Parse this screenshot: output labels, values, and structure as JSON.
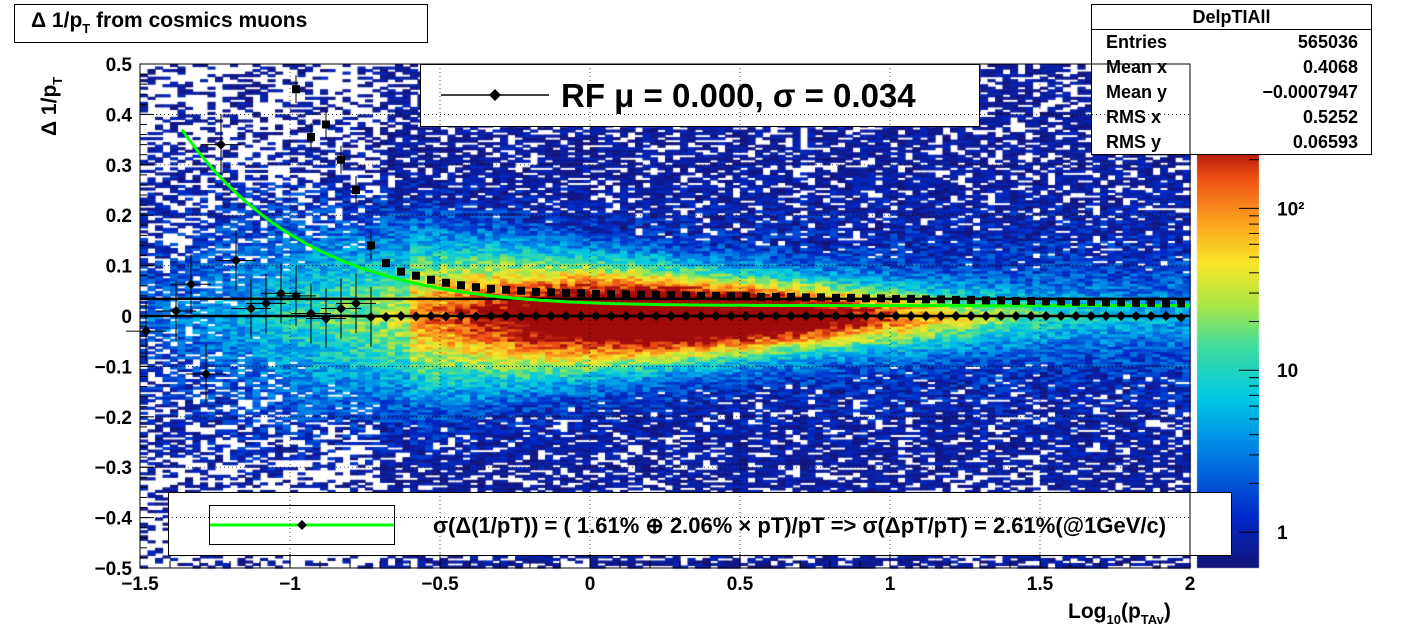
{
  "title": {
    "text": "Δ 1/p",
    "sub": "T",
    "rest": " from cosmics muons"
  },
  "stats": {
    "name": "DelpTIAll",
    "rows": [
      {
        "label": "Entries",
        "value": "565036"
      },
      {
        "label": "Mean x",
        "value": "0.4068"
      },
      {
        "label": "Mean y",
        "value": "−0.0007947"
      },
      {
        "label": "RMS x",
        "value": "0.5252"
      },
      {
        "label": "RMS y",
        "value": "0.06593"
      }
    ]
  },
  "fit_label": "RF μ =  0.000, σ =   0.034",
  "legend_text": "σ(Δ(1/pT)) = ( 1.61% ⊕  2.06% × pT)/pT => σ(ΔpT/pT) =  2.61%(@1GeV/c)",
  "xaxis_title": {
    "main": "Log",
    "sub1": "10",
    "mid": "(p",
    "sub2": "TAv",
    "end": ")"
  },
  "yaxis_title": {
    "main": "Δ 1/p",
    "sub": "T"
  },
  "chart_data": {
    "type": "heatmap",
    "title": "Δ 1/pT from cosmics muons",
    "xlabel": "Log10(pTAv)",
    "ylabel": "Δ 1/pT",
    "xlim": [
      -1.5,
      2
    ],
    "ylim": [
      -0.5,
      0.5
    ],
    "x_ticks": [
      -1.5,
      -1,
      -0.5,
      0,
      0.5,
      1,
      1.5,
      2
    ],
    "x_tick_labels": [
      "−1.5",
      "−1",
      "−0.5",
      "0",
      "0.5",
      "1",
      "1.5",
      "2"
    ],
    "y_ticks": [
      -0.5,
      -0.4,
      -0.3,
      -0.2,
      -0.1,
      0,
      0.1,
      0.2,
      0.3,
      0.4,
      0.5
    ],
    "y_tick_labels": [
      "−0.5",
      "−0.4",
      "−0.3",
      "−0.2",
      "−0.1",
      "0",
      "0.1",
      "0.2",
      "0.3",
      "0.4",
      "0.5"
    ],
    "z_scale": "log",
    "z_ticks": [
      1,
      10,
      100
    ],
    "z_tick_labels": [
      "1",
      "10",
      "10²"
    ],
    "grid": true,
    "reference_lines_y": [
      0.0,
      0.034
    ],
    "mean_points": [
      [
        -1.48,
        -0.03
      ],
      [
        -1.38,
        0.01
      ],
      [
        -1.33,
        0.063
      ],
      [
        -1.28,
        -0.115
      ],
      [
        -1.23,
        0.34
      ],
      [
        -1.18,
        0.11
      ],
      [
        -1.13,
        0.015
      ],
      [
        -1.08,
        0.025
      ],
      [
        -1.03,
        0.045
      ],
      [
        -0.98,
        0.04
      ],
      [
        -0.93,
        0.005
      ],
      [
        -0.88,
        -0.005
      ],
      [
        -0.83,
        0.015
      ],
      [
        -0.78,
        0.025
      ],
      [
        -0.73,
        -0.002
      ],
      [
        -0.68,
        -0.002
      ],
      [
        -0.63,
        0.0
      ],
      [
        -0.58,
        -0.001
      ],
      [
        -0.53,
        0.0
      ],
      [
        -0.48,
        -0.001
      ],
      [
        -0.43,
        0.0
      ],
      [
        -0.38,
        -0.001
      ],
      [
        -0.33,
        0.0
      ],
      [
        -0.28,
        0.0
      ],
      [
        -0.23,
        -0.001
      ],
      [
        -0.18,
        0.0
      ],
      [
        -0.13,
        0.0
      ],
      [
        -0.08,
        0.0
      ],
      [
        -0.03,
        0.0
      ],
      [
        0.02,
        0.0
      ],
      [
        0.07,
        0.0
      ],
      [
        0.12,
        0.0
      ],
      [
        0.17,
        0.0
      ],
      [
        0.22,
        0.0
      ],
      [
        0.27,
        0.0
      ],
      [
        0.32,
        0.0
      ],
      [
        0.37,
        0.0
      ],
      [
        0.42,
        0.0
      ],
      [
        0.47,
        0.0
      ],
      [
        0.52,
        0.0
      ],
      [
        0.57,
        0.0
      ],
      [
        0.62,
        0.0
      ],
      [
        0.67,
        0.0
      ],
      [
        0.72,
        0.0
      ],
      [
        0.77,
        0.0
      ],
      [
        0.82,
        0.0
      ],
      [
        0.87,
        0.0
      ],
      [
        0.92,
        0.0
      ],
      [
        0.97,
        0.0
      ],
      [
        1.02,
        0.0
      ],
      [
        1.07,
        0.0
      ],
      [
        1.12,
        0.0
      ],
      [
        1.17,
        0.0
      ],
      [
        1.22,
        0.0
      ],
      [
        1.27,
        0.0
      ],
      [
        1.32,
        0.0
      ],
      [
        1.37,
        0.0
      ],
      [
        1.42,
        0.0
      ],
      [
        1.47,
        0.0
      ],
      [
        1.52,
        0.0
      ],
      [
        1.57,
        0.0
      ],
      [
        1.62,
        0.0
      ],
      [
        1.67,
        0.0
      ],
      [
        1.72,
        0.0
      ],
      [
        1.77,
        0.0
      ],
      [
        1.82,
        0.0
      ],
      [
        1.87,
        0.0
      ],
      [
        1.92,
        0.0
      ],
      [
        1.97,
        -0.003
      ]
    ],
    "sigma_points": [
      [
        -0.98,
        0.45
      ],
      [
        -0.93,
        0.355
      ],
      [
        -0.88,
        0.38
      ],
      [
        -0.83,
        0.31
      ],
      [
        -0.78,
        0.25
      ],
      [
        -0.73,
        0.14
      ],
      [
        -0.68,
        0.105
      ],
      [
        -0.63,
        0.088
      ],
      [
        -0.58,
        0.08
      ],
      [
        -0.53,
        0.072
      ],
      [
        -0.48,
        0.066
      ],
      [
        -0.43,
        0.061
      ],
      [
        -0.38,
        0.057
      ],
      [
        -0.33,
        0.054
      ],
      [
        -0.28,
        0.052
      ],
      [
        -0.23,
        0.05
      ],
      [
        -0.18,
        0.048
      ],
      [
        -0.13,
        0.047
      ],
      [
        -0.08,
        0.046
      ],
      [
        -0.03,
        0.045
      ],
      [
        0.02,
        0.044
      ],
      [
        0.07,
        0.043
      ],
      [
        0.12,
        0.043
      ],
      [
        0.17,
        0.042
      ],
      [
        0.22,
        0.042
      ],
      [
        0.27,
        0.041
      ],
      [
        0.32,
        0.041
      ],
      [
        0.37,
        0.04
      ],
      [
        0.42,
        0.04
      ],
      [
        0.47,
        0.039
      ],
      [
        0.52,
        0.039
      ],
      [
        0.57,
        0.038
      ],
      [
        0.62,
        0.038
      ],
      [
        0.67,
        0.038
      ],
      [
        0.72,
        0.037
      ],
      [
        0.77,
        0.037
      ],
      [
        0.82,
        0.036
      ],
      [
        0.87,
        0.036
      ],
      [
        0.92,
        0.035
      ],
      [
        0.97,
        0.035
      ],
      [
        1.02,
        0.034
      ],
      [
        1.07,
        0.034
      ],
      [
        1.12,
        0.033
      ],
      [
        1.17,
        0.033
      ],
      [
        1.22,
        0.032
      ],
      [
        1.27,
        0.032
      ],
      [
        1.32,
        0.031
      ],
      [
        1.37,
        0.031
      ],
      [
        1.42,
        0.03
      ],
      [
        1.47,
        0.03
      ],
      [
        1.52,
        0.029
      ],
      [
        1.57,
        0.029
      ],
      [
        1.62,
        0.028
      ],
      [
        1.67,
        0.028
      ],
      [
        1.72,
        0.027
      ],
      [
        1.77,
        0.027
      ],
      [
        1.82,
        0.026
      ],
      [
        1.87,
        0.026
      ],
      [
        1.92,
        0.025
      ],
      [
        1.97,
        0.025
      ]
    ],
    "fit_curve": {
      "a_percent": 1.61,
      "b_percent": 2.06,
      "x_from": -1.36,
      "x_to": 2.0,
      "color": "#00ff00"
    },
    "colors": {
      "points": "#000000",
      "fit": "#00ff00",
      "grid": "#000000"
    }
  }
}
